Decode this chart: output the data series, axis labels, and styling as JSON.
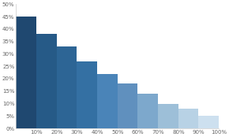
{
  "x_labels": [
    "10%",
    "20%",
    "30%",
    "40%",
    "50%",
    "60%",
    "70%",
    "80%",
    "90%",
    "100%"
  ],
  "heights": [
    45,
    38,
    33,
    27,
    22,
    18,
    14,
    10,
    8,
    5
  ],
  "colors": [
    "#1f4870",
    "#265a87",
    "#2d6595",
    "#3470a3",
    "#4a84b8",
    "#6090be",
    "#7da8cc",
    "#9dbfd8",
    "#b8d2e5",
    "#cde0ef"
  ],
  "ylim": [
    0,
    50
  ],
  "yticks": [
    0,
    5,
    10,
    15,
    20,
    25,
    30,
    35,
    40,
    45,
    50
  ],
  "ytick_labels": [
    "0%",
    "5%",
    "10%",
    "15%",
    "20%",
    "25%",
    "30%",
    "35%",
    "40%",
    "45%",
    "50%"
  ],
  "bg_color": "#ffffff",
  "bar_width": 0.1
}
